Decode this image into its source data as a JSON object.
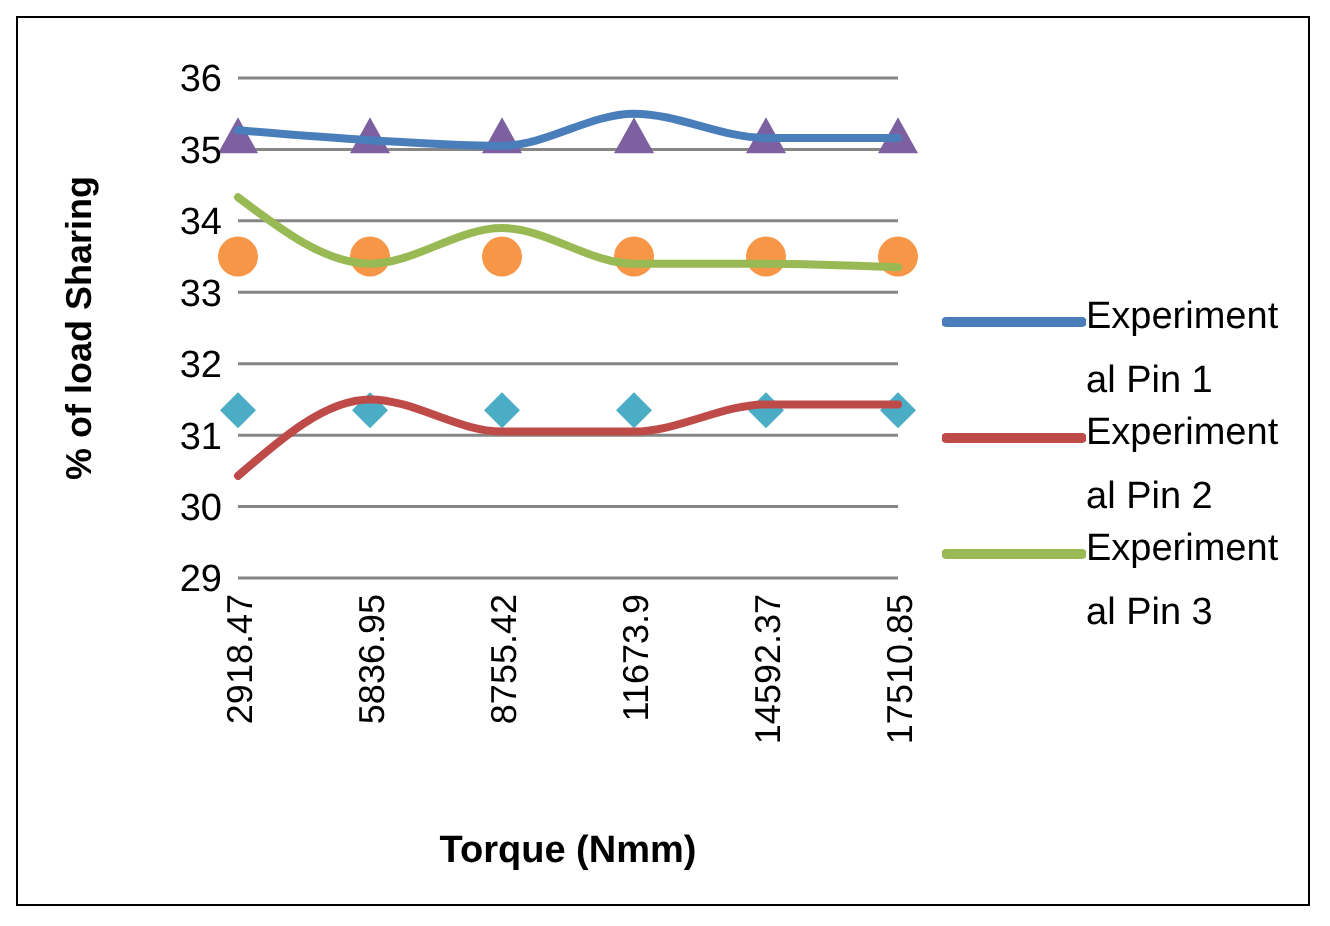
{
  "chart_data": {
    "type": "line",
    "xlabel": "Torque (Nmm)",
    "ylabel": "% of load Sharing",
    "categories": [
      "2918.47",
      "5836.95",
      "8755.42",
      "11673.9",
      "14592.37",
      "17510.85"
    ],
    "ylim": [
      29,
      36
    ],
    "yticks": [
      29,
      30,
      31,
      32,
      33,
      34,
      35,
      36
    ],
    "grid": "y",
    "legend": "right",
    "line_style": "solid",
    "series": [
      {
        "name": "Experimental Pin 1",
        "marker": "none",
        "color": "#4a7ebb",
        "values": [
          35.27,
          35.13,
          35.05,
          35.5,
          35.16,
          35.16
        ]
      },
      {
        "name": "Experimental Pin 2",
        "marker": "none",
        "color": "#be4b48",
        "values": [
          30.43,
          31.5,
          31.05,
          31.05,
          31.43,
          31.43
        ]
      },
      {
        "name": "Experimental Pin 3",
        "marker": "none",
        "color": "#98b954",
        "values": [
          34.33,
          33.4,
          33.9,
          33.4,
          33.4,
          33.35
        ]
      },
      {
        "type": "scatter",
        "marker": "triangle",
        "color": "#7d60a0",
        "values": [
          35.2,
          35.2,
          35.2,
          35.2,
          35.2,
          35.2
        ]
      },
      {
        "type": "scatter",
        "marker": "circle",
        "color": "#f79646",
        "values": [
          33.5,
          33.5,
          33.5,
          33.5,
          33.5,
          33.5
        ]
      },
      {
        "type": "scatter",
        "marker": "diamond",
        "color": "#4bacc6",
        "values": [
          31.35,
          31.35,
          31.35,
          31.35,
          31.35,
          31.35
        ]
      }
    ]
  }
}
